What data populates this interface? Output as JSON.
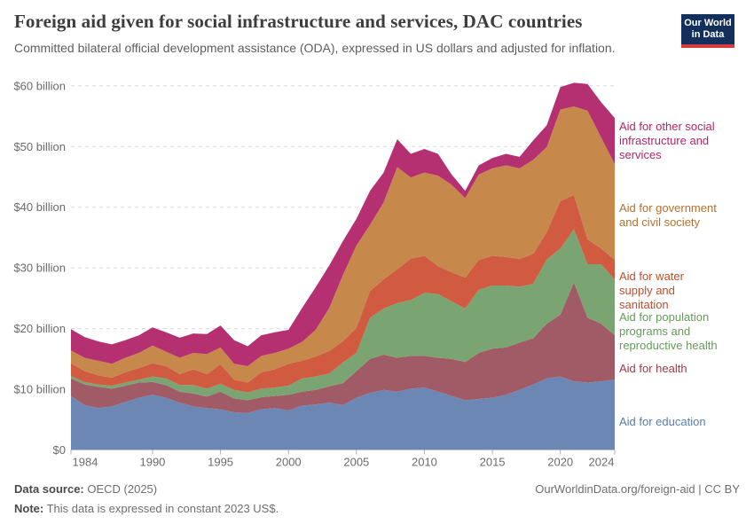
{
  "header": {
    "title": "Foreign aid given for social infrastructure and services, DAC countries",
    "subtitle": "Committed bilateral official development assistance (ODA), expressed in US dollars and adjusted for inflation.",
    "logo_line1": "Our World",
    "logo_line2": "in Data",
    "logo_bg": "#12305b",
    "logo_accent": "#d63c3f"
  },
  "footer": {
    "source_label": "Data source:",
    "source_value": " OECD (2025)",
    "attribution": "OurWorldinData.org/foreign-aid | CC BY",
    "note_label": "Note:",
    "note_value": " This data is expressed in constant 2023 US$."
  },
  "chart_data": {
    "type": "area",
    "stacked": true,
    "title": "Foreign aid given for social infrastructure and services, DAC countries",
    "xlabel": "",
    "ylabel": "",
    "unit": "US$ billion (constant 2023 US$)",
    "ylim": [
      0,
      61.7
    ],
    "grid": "horizontal-dashed",
    "x": [
      1984,
      1985,
      1986,
      1987,
      1988,
      1989,
      1990,
      1991,
      1992,
      1993,
      1994,
      1995,
      1996,
      1997,
      1998,
      1999,
      2000,
      2001,
      2002,
      2003,
      2004,
      2005,
      2006,
      2007,
      2008,
      2009,
      2010,
      2011,
      2012,
      2013,
      2014,
      2015,
      2016,
      2017,
      2018,
      2019,
      2020,
      2021,
      2022,
      2023,
      2024
    ],
    "x_ticks": [
      1984,
      1990,
      1995,
      2000,
      2005,
      2010,
      2015,
      2020,
      2024
    ],
    "y_ticks": [
      {
        "value": 0,
        "label": "$0"
      },
      {
        "value": 10,
        "label": "$10 billion"
      },
      {
        "value": 20,
        "label": "$20 billion"
      },
      {
        "value": 30,
        "label": "$30 billion"
      },
      {
        "value": 40,
        "label": "$40 billion"
      },
      {
        "value": 50,
        "label": "$50 billion"
      },
      {
        "value": 60,
        "label": "$60 billion"
      }
    ],
    "series": [
      {
        "name": "Aid for education",
        "slug": "education",
        "color": "#6d87b5",
        "label_color": "#587cb1",
        "label_lines": [
          "Aid for education"
        ],
        "values": [
          8.9,
          7.4,
          6.9,
          7.2,
          7.9,
          8.6,
          9.1,
          8.6,
          7.8,
          7.2,
          6.9,
          6.7,
          6.2,
          6.1,
          6.7,
          6.9,
          6.5,
          7.3,
          7.5,
          7.8,
          7.4,
          8.6,
          9.4,
          9.9,
          9.6,
          10.1,
          10.3,
          9.6,
          8.9,
          8.2,
          8.4,
          8.6,
          9.1,
          9.9,
          10.8,
          11.8,
          12.1,
          11.3,
          11.1,
          11.3,
          11.6
        ]
      },
      {
        "name": "Aid for health",
        "slug": "health",
        "color": "#a05b66",
        "label_color": "#9c3a46",
        "label_lines": [
          "Aid for health"
        ],
        "values": [
          2.9,
          3.4,
          3.5,
          2.9,
          2.7,
          2.5,
          2.1,
          2.1,
          1.8,
          2.1,
          1.9,
          2.9,
          2.3,
          2.1,
          2.0,
          2.0,
          2.6,
          2.3,
          2.4,
          2.7,
          3.6,
          4.4,
          5.6,
          5.8,
          5.6,
          5.4,
          5.2,
          5.6,
          6.1,
          6.3,
          7.6,
          8.1,
          7.8,
          7.8,
          7.6,
          9.0,
          10.2,
          16.3,
          10.7,
          9.5,
          7.3
        ]
      },
      {
        "name": "Aid for population programs and reproductive health",
        "slug": "population",
        "color": "#7aa471",
        "label_color": "#669c59",
        "label_lines": [
          "Aid for population",
          "programs and",
          "reproductive health"
        ],
        "values": [
          0.4,
          0.4,
          0.4,
          0.5,
          0.5,
          0.5,
          0.9,
          1.1,
          1.1,
          1.4,
          1.3,
          1.3,
          1.4,
          1.3,
          1.4,
          1.4,
          1.5,
          2.2,
          2.2,
          2.1,
          3.4,
          3.0,
          6.8,
          7.6,
          9.0,
          9.2,
          10.4,
          10.5,
          9.5,
          8.8,
          10.4,
          10.4,
          10.2,
          9.2,
          9.0,
          10.6,
          10.9,
          8.8,
          8.8,
          9.8,
          9.2
        ]
      },
      {
        "name": "Aid for water supply and sanitation",
        "slug": "water",
        "color": "#d05b40",
        "label_color": "#c24e2a",
        "label_lines": [
          "Aid for water",
          "supply and",
          "sanitation"
        ],
        "values": [
          2.1,
          1.8,
          1.5,
          1.3,
          1.7,
          1.9,
          2.2,
          2.0,
          1.8,
          2.6,
          2.4,
          3.2,
          1.7,
          1.6,
          2.7,
          3.0,
          3.6,
          2.9,
          3.3,
          3.7,
          3.5,
          4.1,
          4.4,
          4.8,
          5.6,
          6.8,
          6.1,
          4.6,
          4.8,
          5.1,
          4.9,
          4.9,
          4.7,
          4.6,
          4.9,
          4.5,
          7.8,
          5.6,
          4.1,
          2.6,
          3.2
        ]
      },
      {
        "name": "Aid for government and civil society",
        "slug": "government",
        "color": "#c6884b",
        "label_color": "#b5702d",
        "label_lines": [
          "Aid for government",
          "and civil society"
        ],
        "values": [
          2.1,
          2.2,
          2.4,
          2.3,
          2.4,
          2.5,
          2.9,
          2.4,
          2.7,
          2.7,
          3.3,
          2.8,
          2.6,
          2.7,
          2.7,
          2.7,
          2.5,
          3.1,
          4.4,
          7.1,
          10.9,
          13.6,
          10.9,
          12.7,
          16.8,
          13.4,
          13.7,
          14.9,
          14.4,
          13.1,
          14.1,
          14.4,
          15.1,
          14.9,
          15.5,
          14.0,
          15.1,
          14.6,
          21.2,
          18.3,
          15.8
        ]
      },
      {
        "name": "Aid for other social infrastructure and services",
        "slug": "other",
        "color": "#b53071",
        "label_color": "#b1256a",
        "label_lines": [
          "Aid for other social",
          "infrastructure and",
          "services"
        ],
        "values": [
          3.5,
          3.4,
          3.2,
          3.2,
          2.9,
          2.9,
          3.0,
          3.2,
          3.3,
          3.2,
          3.3,
          3.6,
          3.9,
          3.3,
          3.4,
          3.4,
          3.1,
          5.6,
          7.0,
          7.0,
          5.6,
          4.4,
          5.6,
          4.9,
          4.6,
          3.9,
          3.9,
          3.6,
          1.7,
          1.2,
          1.5,
          1.7,
          1.9,
          1.9,
          3.2,
          3.6,
          3.7,
          3.9,
          4.4,
          5.8,
          7.6
        ]
      }
    ]
  }
}
